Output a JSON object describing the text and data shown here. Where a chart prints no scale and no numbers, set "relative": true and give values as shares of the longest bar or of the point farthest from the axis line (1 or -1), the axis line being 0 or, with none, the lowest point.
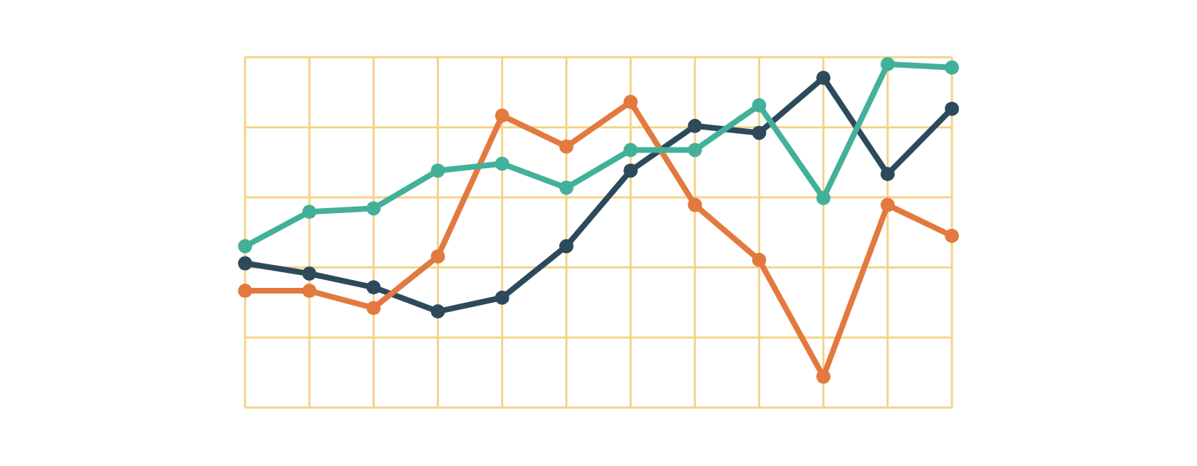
{
  "chart_data": {
    "type": "line",
    "relative": true,
    "categories": [
      null,
      null,
      null,
      null,
      null,
      null,
      null,
      null,
      null,
      null,
      null,
      null
    ],
    "series": [
      {
        "color": "#43b09a",
        "values": [
          0.47,
          0.57,
          0.58,
          0.69,
          0.71,
          0.64,
          0.75,
          0.75,
          0.88,
          0.61,
          1.0,
          0.99
        ]
      },
      {
        "color": "#e27a3f",
        "values": [
          0.34,
          0.34,
          0.29,
          0.44,
          0.85,
          0.76,
          0.89,
          0.59,
          0.43,
          0.09,
          0.59,
          0.5
        ]
      },
      {
        "color": "#2c4a5c",
        "values": [
          0.42,
          0.39,
          0.35,
          0.28,
          0.32,
          0.47,
          0.69,
          0.82,
          0.8,
          0.96,
          0.68,
          0.87
        ]
      }
    ],
    "grid": true,
    "legend": false,
    "marker": "circle",
    "line_style": "solid"
  }
}
